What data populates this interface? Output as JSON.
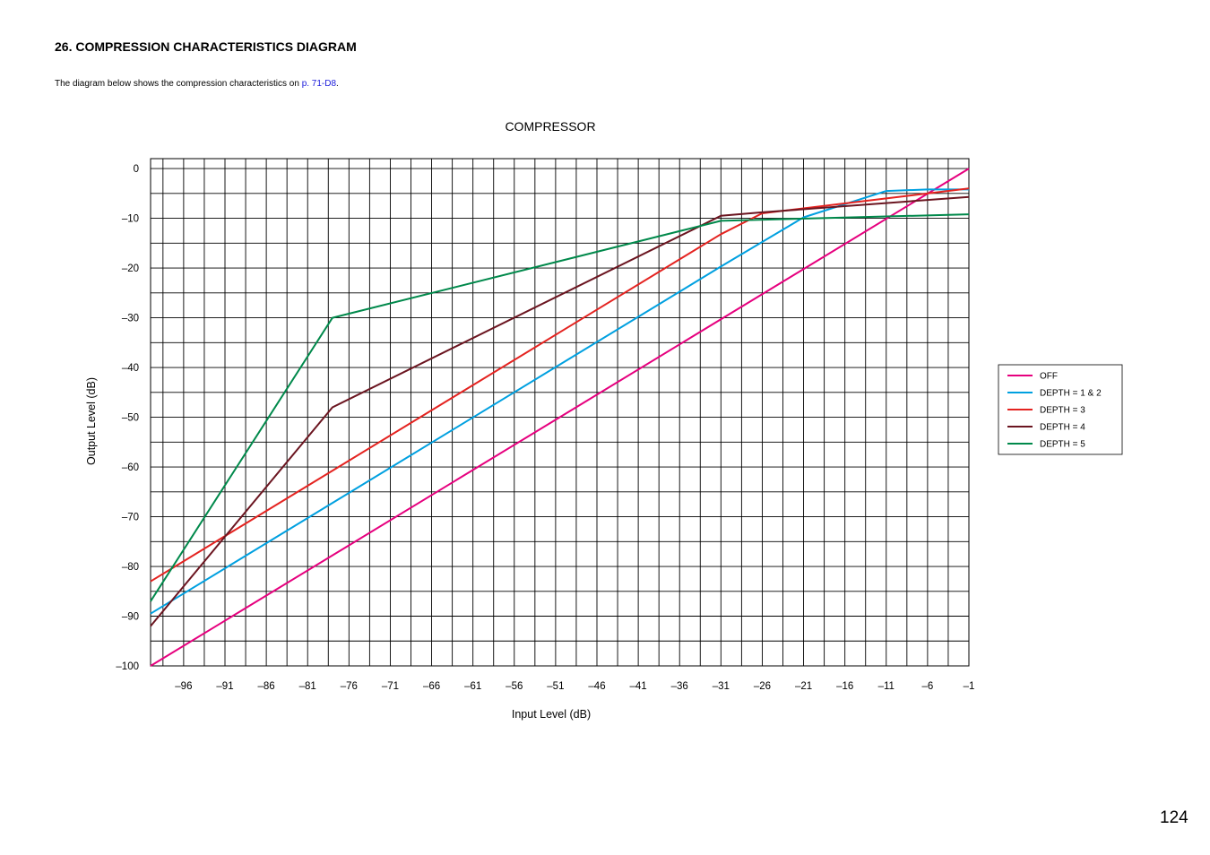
{
  "heading": "26. COMPRESSION CHARACTERISTICS DIAGRAM",
  "intro": {
    "text": "The diagram below shows the compression characteristics on ",
    "link": "p. 71-D8",
    "suffix": "."
  },
  "page_number": "124",
  "colors": {
    "link": "#1a1adb",
    "grid": "#000000"
  },
  "chart_data": {
    "type": "line",
    "title": "COMPRESSOR",
    "xlabel": "Input Level (dB)",
    "ylabel": "Output Level (dB)",
    "xlim": [
      -100,
      -1
    ],
    "ylim": [
      -100,
      2
    ],
    "x_ticks": [
      -96,
      -91,
      -86,
      -81,
      -76,
      -71,
      -66,
      -61,
      -56,
      -51,
      -46,
      -41,
      -36,
      -31,
      -26,
      -21,
      -16,
      -11,
      -6,
      -1
    ],
    "x_tick_labels": [
      "–96",
      "–91",
      "–86",
      "–81",
      "–76",
      "–71",
      "–66",
      "–61",
      "–56",
      "–51",
      "–46",
      "–41",
      "–36",
      "–31",
      "–26",
      "–21",
      "–16",
      "–11",
      "–6",
      "–1"
    ],
    "y_ticks": [
      0,
      -10,
      -20,
      -30,
      -40,
      -50,
      -60,
      -70,
      -80,
      -90,
      -100
    ],
    "y_tick_labels": [
      "0",
      "–10",
      "–20",
      "–30",
      "–40",
      "–50",
      "–60",
      "–70",
      "–80",
      "–90",
      "–100"
    ],
    "grid": true,
    "legend_position": "right",
    "series": [
      {
        "name": "OFF",
        "color": "#e6007e",
        "points": [
          [
            -100,
            -100
          ],
          [
            -1,
            0
          ]
        ]
      },
      {
        "name": "DEPTH = 1 & 2",
        "color": "#00a0e0",
        "points": [
          [
            -100,
            -89.5
          ],
          [
            -31,
            -19.7
          ],
          [
            -21,
            -9.8
          ],
          [
            -11,
            -4.5
          ],
          [
            -6,
            -4.2
          ],
          [
            -1,
            -4.2
          ]
        ]
      },
      {
        "name": "DEPTH = 3",
        "color": "#e42320",
        "points": [
          [
            -100,
            -83
          ],
          [
            -31,
            -13.2
          ],
          [
            -26,
            -9
          ],
          [
            -11,
            -6
          ],
          [
            -1,
            -4
          ]
        ]
      },
      {
        "name": "DEPTH = 4",
        "color": "#6b1520",
        "points": [
          [
            -100,
            -92
          ],
          [
            -78,
            -48
          ],
          [
            -31,
            -9.5
          ],
          [
            -26,
            -8.8
          ],
          [
            -1,
            -5.7
          ]
        ]
      },
      {
        "name": "DEPTH = 5",
        "color": "#00894b",
        "points": [
          [
            -100,
            -87
          ],
          [
            -78,
            -30
          ],
          [
            -31,
            -10.5
          ],
          [
            -1,
            -9.2
          ]
        ]
      }
    ]
  }
}
